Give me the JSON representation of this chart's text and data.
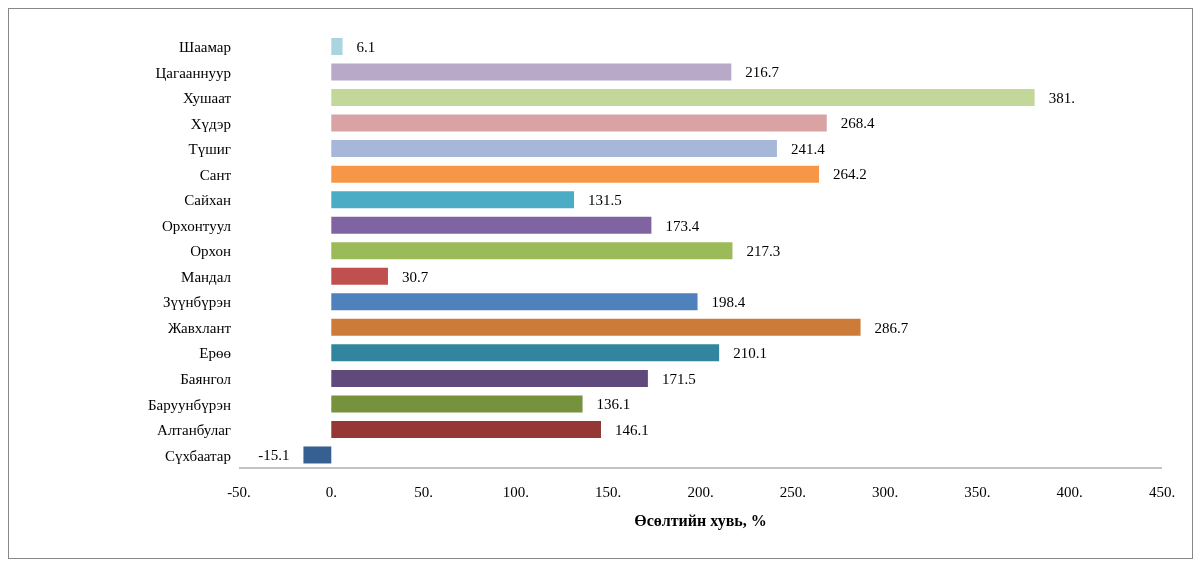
{
  "chart_data": {
    "type": "bar",
    "orientation": "horizontal",
    "xlabel": "Өсөлтийн хувь, %",
    "categories": [
      "Шаамар",
      "Цагааннуур",
      "Хушаат",
      "Хүдэр",
      "Түшиг",
      "Сант",
      "Сайхан",
      "Орхонтуул",
      "Орхон",
      "Мандал",
      "Зүүнбүрэн",
      "Жавхлант",
      "Ерөө",
      "Баянгол",
      "Баруунбүрэн",
      "Алтанбулаг",
      "Сүхбаатар"
    ],
    "values": [
      6.1,
      216.7,
      381,
      268.4,
      241.4,
      264.2,
      131.5,
      173.4,
      217.3,
      30.7,
      198.4,
      286.7,
      210.1,
      171.5,
      136.1,
      146.1,
      -15.1
    ],
    "value_labels": [
      "6.1",
      "216.7",
      "381.",
      "268.4",
      "241.4",
      "264.2",
      "131.5",
      "173.4",
      "217.3",
      "30.7",
      "198.4",
      "286.7",
      "210.1",
      "171.5",
      "136.1",
      "146.1",
      "-15.1"
    ],
    "colors": [
      "#a9d4e0",
      "#b8a9c9",
      "#c4d79b",
      "#d9a3a3",
      "#a6b7d9",
      "#f79646",
      "#4bacc6",
      "#8064a2",
      "#9bbb59",
      "#c0504d",
      "#4f81bd",
      "#cc7b38",
      "#31859c",
      "#604a7b",
      "#76923c",
      "#953735",
      "#366092"
    ],
    "xlim": [
      -50,
      450
    ],
    "xticks": [
      {
        "value": -50,
        "label": "-50."
      },
      {
        "value": 0,
        "label": "0."
      },
      {
        "value": 50,
        "label": "50."
      },
      {
        "value": 100,
        "label": "100."
      },
      {
        "value": 150,
        "label": "150."
      },
      {
        "value": 200,
        "label": "200."
      },
      {
        "value": 250,
        "label": "250."
      },
      {
        "value": 300,
        "label": "300."
      },
      {
        "value": 350,
        "label": "350."
      },
      {
        "value": 400,
        "label": "400."
      },
      {
        "value": 450,
        "label": "450."
      }
    ],
    "grid": false,
    "legend": false
  }
}
